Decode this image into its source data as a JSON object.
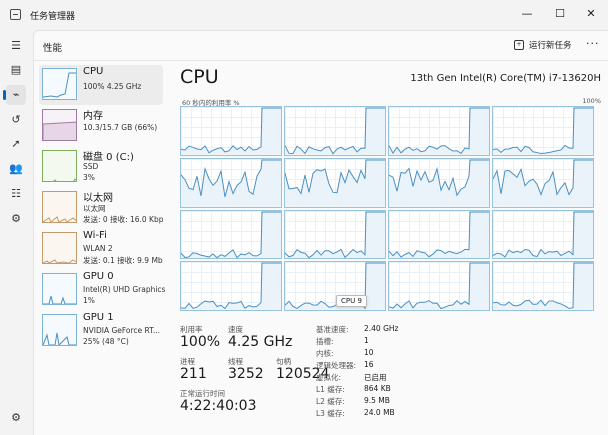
{
  "window": {
    "title": "任务管理器",
    "minimize": "—",
    "maximize": "☐",
    "close": "✕"
  },
  "nav": {
    "items": [
      {
        "name": "hamburger-icon",
        "glyph": "☰"
      },
      {
        "name": "processes-icon",
        "glyph": "▤"
      },
      {
        "name": "performance-icon",
        "glyph": "⌁"
      },
      {
        "name": "app-history-icon",
        "glyph": "↺"
      },
      {
        "name": "startup-apps-icon",
        "glyph": "➚"
      },
      {
        "name": "users-icon",
        "glyph": "👥"
      },
      {
        "name": "details-icon",
        "glyph": "☷"
      },
      {
        "name": "services-icon",
        "glyph": "⚙"
      }
    ],
    "settings_glyph": "⚙"
  },
  "header": {
    "title": "性能",
    "run_task": "运行新任务",
    "more": "···"
  },
  "devices": [
    {
      "name": "CPU",
      "sub1": "100%  4.25 GHz",
      "sub2": ""
    },
    {
      "name": "内存",
      "sub1": "10.3/15.7 GB (66%)",
      "sub2": ""
    },
    {
      "name": "磁盘 0 (C:)",
      "sub1": "SSD",
      "sub2": "3%"
    },
    {
      "name": "以太网",
      "sub1": "以太网",
      "sub2": "发送: 0  接收: 16.0 Kbp"
    },
    {
      "name": "Wi-Fi",
      "sub1": "WLAN 2",
      "sub2": "发送: 0.1  接收: 9.9 Mb"
    },
    {
      "name": "GPU 0",
      "sub1": "Intel(R) UHD Graphics",
      "sub2": "1%"
    },
    {
      "name": "GPU 1",
      "sub1": "NVIDIA GeForce RT...",
      "sub2": "25% (48 °C)"
    }
  ],
  "cpu": {
    "title": "CPU",
    "model": "13th Gen Intel(R) Core(TM) i7-13620H",
    "graph_left": "60 秒内的利用率 %",
    "graph_right": "100%",
    "tooltip": "CPU 9",
    "utilization_label": "利用率",
    "utilization": "100%",
    "speed_label": "速度",
    "speed": "4.25 GHz",
    "processes_label": "进程",
    "processes": "211",
    "threads_label": "线程",
    "threads": "3252",
    "handles_label": "句柄",
    "handles": "120524",
    "uptime_label": "正常运行时间",
    "uptime": "4:22:40:03",
    "specs": [
      {
        "k": "基准速度:",
        "v": "2.40 GHz"
      },
      {
        "k": "插槽:",
        "v": "1"
      },
      {
        "k": "内核:",
        "v": "10"
      },
      {
        "k": "逻辑处理器:",
        "v": "16"
      },
      {
        "k": "虚拟化:",
        "v": "已启用"
      },
      {
        "k": "L1 缓存:",
        "v": "864 KB"
      },
      {
        "k": "L2 缓存:",
        "v": "9.5 MB"
      },
      {
        "k": "L3 缓存:",
        "v": "24.0 MB"
      }
    ]
  },
  "colors": {
    "cpu_line": "#4a90c2",
    "accent": "#0a62b8"
  }
}
